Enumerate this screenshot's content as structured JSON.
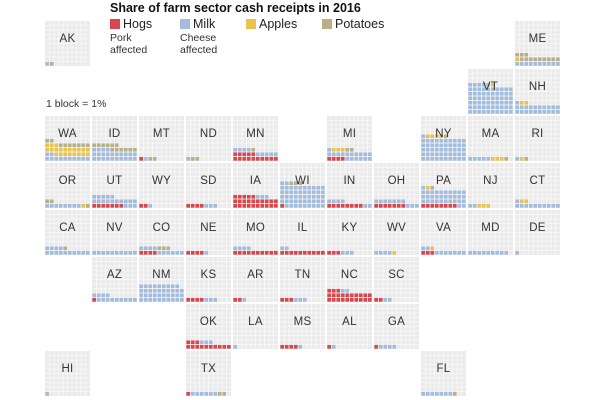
{
  "chart_data": {
    "type": "waffle-tile-map",
    "title": "Share of farm sector cash receipts in 2016",
    "scale_note": "1 block = 1%",
    "series": [
      {
        "key": "hogs",
        "name": "Hogs",
        "color": "#d9474e",
        "note": "Pork affected"
      },
      {
        "key": "milk",
        "name": "Milk",
        "color": "#a3bcdd",
        "note": "Cheese affected"
      },
      {
        "key": "apples",
        "name": "Apples",
        "color": "#e8c351"
      },
      {
        "key": "potatoes",
        "name": "Potatoes",
        "color": "#b9b08a"
      }
    ],
    "empty_color": "#ebebeb",
    "states": [
      {
        "abbr": "AK",
        "col": 0,
        "row": 0,
        "hogs": 0,
        "milk": 1,
        "apples": 0,
        "potatoes": 1
      },
      {
        "abbr": "ME",
        "col": 10,
        "row": 0,
        "hogs": 0,
        "milk": 10,
        "apples": 1,
        "potatoes": 12
      },
      {
        "abbr": "VT",
        "col": 9,
        "row": 1,
        "hogs": 0,
        "milk": 65,
        "apples": 1,
        "potatoes": 0
      },
      {
        "abbr": "NH",
        "col": 10,
        "row": 1,
        "hogs": 0,
        "milk": 21,
        "apples": 2,
        "potatoes": 0
      },
      {
        "abbr": "WA",
        "col": 0,
        "row": 2,
        "hogs": 0,
        "milk": 12,
        "apples": 21,
        "potatoes": 9
      },
      {
        "abbr": "ID",
        "col": 1,
        "row": 2,
        "hogs": 0,
        "milk": 24,
        "apples": 0,
        "potatoes": 12
      },
      {
        "abbr": "MT",
        "col": 2,
        "row": 2,
        "hogs": 1,
        "milk": 1,
        "apples": 0,
        "potatoes": 2
      },
      {
        "abbr": "ND",
        "col": 3,
        "row": 2,
        "hogs": 0,
        "milk": 1,
        "apples": 0,
        "potatoes": 2
      },
      {
        "abbr": "MN",
        "col": 4,
        "row": 2,
        "hogs": 15,
        "milk": 9,
        "apples": 0,
        "potatoes": 1
      },
      {
        "abbr": "MI",
        "col": 6,
        "row": 2,
        "hogs": 4,
        "milk": 17,
        "apples": 3,
        "potatoes": 2
      },
      {
        "abbr": "NY",
        "col": 8,
        "row": 2,
        "hogs": 0,
        "milk": 51,
        "apples": 4,
        "potatoes": 1
      },
      {
        "abbr": "MA",
        "col": 9,
        "row": 2,
        "hogs": 0,
        "milk": 5,
        "apples": 3,
        "potatoes": 1
      },
      {
        "abbr": "RI",
        "col": 10,
        "row": 2,
        "hogs": 0,
        "milk": 1,
        "apples": 1,
        "potatoes": 1
      },
      {
        "abbr": "OR",
        "col": 0,
        "row": 3,
        "hogs": 0,
        "milk": 8,
        "apples": 1,
        "potatoes": 3
      },
      {
        "abbr": "UT",
        "col": 1,
        "row": 3,
        "hogs": 7,
        "milk": 18,
        "apples": 0,
        "potatoes": 0
      },
      {
        "abbr": "WY",
        "col": 2,
        "row": 3,
        "hogs": 2,
        "milk": 1,
        "apples": 0,
        "potatoes": 0
      },
      {
        "abbr": "SD",
        "col": 3,
        "row": 3,
        "hogs": 4,
        "milk": 3,
        "apples": 0,
        "potatoes": 0
      },
      {
        "abbr": "IA",
        "col": 4,
        "row": 3,
        "hogs": 25,
        "milk": 3,
        "apples": 0,
        "potatoes": 0
      },
      {
        "abbr": "WI",
        "col": 5,
        "row": 3,
        "hogs": 1,
        "milk": 51,
        "apples": 0,
        "potatoes": 3
      },
      {
        "abbr": "IN",
        "col": 6,
        "row": 3,
        "hogs": 8,
        "milk": 6,
        "apples": 0,
        "potatoes": 0
      },
      {
        "abbr": "OH",
        "col": 7,
        "row": 3,
        "hogs": 7,
        "milk": 10,
        "apples": 0,
        "potatoes": 0
      },
      {
        "abbr": "PA",
        "col": 8,
        "row": 3,
        "hogs": 8,
        "milk": 33,
        "apples": 1,
        "potatoes": 1
      },
      {
        "abbr": "NJ",
        "col": 9,
        "row": 3,
        "hogs": 0,
        "milk": 2,
        "apples": 3,
        "potatoes": 0
      },
      {
        "abbr": "CT",
        "col": 10,
        "row": 3,
        "hogs": 0,
        "milk": 11,
        "apples": 2,
        "potatoes": 0
      },
      {
        "abbr": "CA",
        "col": 0,
        "row": 4,
        "hogs": 0,
        "milk": 14,
        "apples": 0,
        "potatoes": 1
      },
      {
        "abbr": "NV",
        "col": 1,
        "row": 4,
        "hogs": 0,
        "milk": 10,
        "apples": 0,
        "potatoes": 0
      },
      {
        "abbr": "CO",
        "col": 2,
        "row": 4,
        "hogs": 4,
        "milk": 10,
        "apples": 0,
        "potatoes": 3
      },
      {
        "abbr": "NE",
        "col": 3,
        "row": 4,
        "hogs": 4,
        "milk": 1,
        "apples": 0,
        "potatoes": 0
      },
      {
        "abbr": "MO",
        "col": 4,
        "row": 4,
        "hogs": 10,
        "milk": 4,
        "apples": 0,
        "potatoes": 0
      },
      {
        "abbr": "IL",
        "col": 5,
        "row": 4,
        "hogs": 10,
        "milk": 2,
        "apples": 0,
        "potatoes": 0
      },
      {
        "abbr": "KY",
        "col": 6,
        "row": 4,
        "hogs": 3,
        "milk": 3,
        "apples": 0,
        "potatoes": 0
      },
      {
        "abbr": "WV",
        "col": 7,
        "row": 4,
        "hogs": 0,
        "milk": 4,
        "apples": 1,
        "potatoes": 0
      },
      {
        "abbr": "VA",
        "col": 8,
        "row": 4,
        "hogs": 3,
        "milk": 9,
        "apples": 1,
        "potatoes": 0
      },
      {
        "abbr": "MD",
        "col": 9,
        "row": 4,
        "hogs": 0,
        "milk": 9,
        "apples": 0,
        "potatoes": 0
      },
      {
        "abbr": "DE",
        "col": 10,
        "row": 4,
        "hogs": 0,
        "milk": 1,
        "apples": 0,
        "potatoes": 0
      },
      {
        "abbr": "AZ",
        "col": 1,
        "row": 5,
        "hogs": 1,
        "milk": 13,
        "apples": 0,
        "potatoes": 0
      },
      {
        "abbr": "NM",
        "col": 2,
        "row": 5,
        "hogs": 0,
        "milk": 39,
        "apples": 0,
        "potatoes": 0
      },
      {
        "abbr": "KS",
        "col": 3,
        "row": 5,
        "hogs": 4,
        "milk": 3,
        "apples": 0,
        "potatoes": 0
      },
      {
        "abbr": "AR",
        "col": 4,
        "row": 5,
        "hogs": 2,
        "milk": 1,
        "apples": 0,
        "potatoes": 0
      },
      {
        "abbr": "TN",
        "col": 5,
        "row": 5,
        "hogs": 3,
        "milk": 3,
        "apples": 0,
        "potatoes": 0
      },
      {
        "abbr": "NC",
        "col": 6,
        "row": 5,
        "hogs": 23,
        "milk": 2,
        "apples": 0,
        "potatoes": 0
      },
      {
        "abbr": "SC",
        "col": 7,
        "row": 5,
        "hogs": 2,
        "milk": 2,
        "apples": 0,
        "potatoes": 0
      },
      {
        "abbr": "OK",
        "col": 3,
        "row": 6,
        "hogs": 13,
        "milk": 3,
        "apples": 0,
        "potatoes": 0
      },
      {
        "abbr": "LA",
        "col": 4,
        "row": 6,
        "hogs": 0,
        "milk": 1,
        "apples": 0,
        "potatoes": 0
      },
      {
        "abbr": "MS",
        "col": 5,
        "row": 6,
        "hogs": 4,
        "milk": 1,
        "apples": 0,
        "potatoes": 0
      },
      {
        "abbr": "AL",
        "col": 6,
        "row": 6,
        "hogs": 1,
        "milk": 1,
        "apples": 0,
        "potatoes": 0
      },
      {
        "abbr": "GA",
        "col": 7,
        "row": 6,
        "hogs": 1,
        "milk": 4,
        "apples": 0,
        "potatoes": 0
      },
      {
        "abbr": "HI",
        "col": 0,
        "row": 7,
        "hogs": 0,
        "milk": 1,
        "apples": 0,
        "potatoes": 0
      },
      {
        "abbr": "TX",
        "col": 3,
        "row": 7,
        "hogs": 1,
        "milk": 6,
        "apples": 0,
        "potatoes": 2
      },
      {
        "abbr": "FL",
        "col": 8,
        "row": 7,
        "hogs": 0,
        "milk": 7,
        "apples": 0,
        "potatoes": 1
      }
    ]
  }
}
